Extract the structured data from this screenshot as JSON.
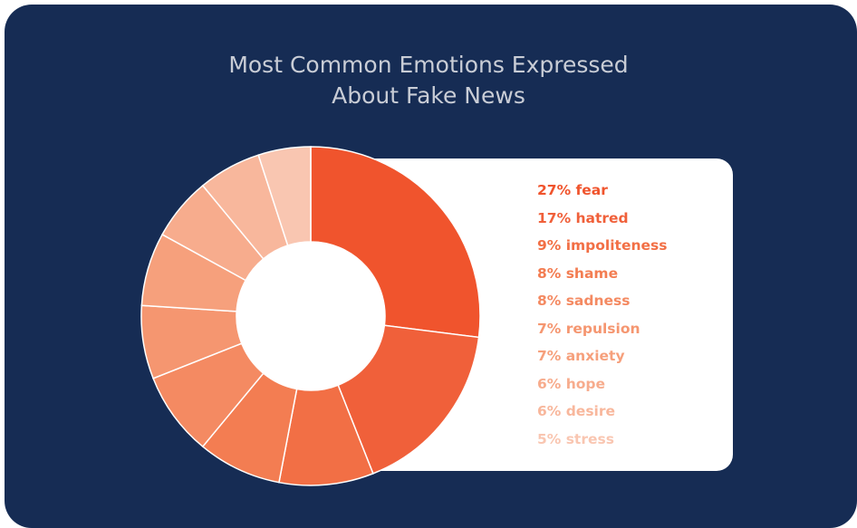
{
  "chart_data": {
    "type": "pie",
    "title_lines": [
      "Most Common Emotions Expressed",
      "About Fake News"
    ],
    "slices": [
      {
        "label": "27% fear",
        "value": 27,
        "color": "#f0542d"
      },
      {
        "label": "17% hatred",
        "value": 17,
        "color": "#f0603a"
      },
      {
        "label": "9% impoliteness",
        "value": 9,
        "color": "#f26f45"
      },
      {
        "label": "8% shame",
        "value": 8,
        "color": "#f37d52"
      },
      {
        "label": "8% sadness",
        "value": 8,
        "color": "#f48a62"
      },
      {
        "label": "7% repulsion",
        "value": 7,
        "color": "#f59670"
      },
      {
        "label": "7% anxiety",
        "value": 7,
        "color": "#f6a07c"
      },
      {
        "label": "6% hope",
        "value": 6,
        "color": "#f7ac8d"
      },
      {
        "label": "6% desire",
        "value": 6,
        "color": "#f8b79c"
      },
      {
        "label": "5% stress",
        "value": 5,
        "color": "#f9c6b1"
      }
    ],
    "legend_placement": "right",
    "hole": true
  },
  "colors": {
    "background": "#162c54",
    "title": "#c9cdd6",
    "legend_panel": "#ffffff"
  }
}
